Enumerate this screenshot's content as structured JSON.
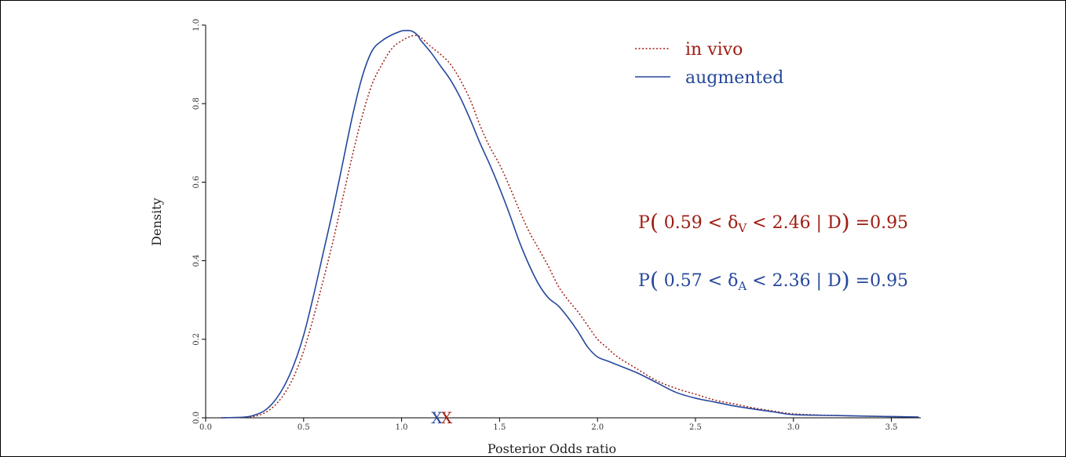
{
  "chart_data": {
    "type": "line",
    "title": "",
    "xlabel": "Posterior Odds ratio",
    "ylabel": "Density",
    "xlim": [
      0.0,
      3.65
    ],
    "ylim": [
      0.0,
      1.0
    ],
    "x_ticks": [
      "0.0",
      "0.5",
      "1.0",
      "1.5",
      "2.0",
      "2.5",
      "3.0",
      "3.5"
    ],
    "y_ticks": [
      "0.0",
      "0.2",
      "0.4",
      "0.6",
      "0.8",
      "1.0"
    ],
    "grid": false,
    "legend_position": "top-right",
    "series": [
      {
        "name": "in vivo",
        "color": "#a01c12",
        "style": "dotted",
        "x": [
          0.08,
          0.2,
          0.25,
          0.3,
          0.35,
          0.4,
          0.45,
          0.5,
          0.55,
          0.6,
          0.65,
          0.7,
          0.75,
          0.8,
          0.85,
          0.9,
          0.95,
          1.0,
          1.05,
          1.08,
          1.1,
          1.15,
          1.2,
          1.25,
          1.3,
          1.35,
          1.4,
          1.45,
          1.5,
          1.55,
          1.6,
          1.65,
          1.7,
          1.75,
          1.8,
          1.85,
          1.9,
          1.95,
          2.0,
          2.05,
          2.1,
          2.2,
          2.3,
          2.4,
          2.5,
          2.6,
          2.7,
          2.8,
          2.9,
          3.0,
          3.2,
          3.4,
          3.64
        ],
        "y": [
          0.0,
          0.001,
          0.004,
          0.012,
          0.03,
          0.06,
          0.105,
          0.17,
          0.255,
          0.35,
          0.45,
          0.56,
          0.67,
          0.77,
          0.85,
          0.9,
          0.94,
          0.96,
          0.972,
          0.973,
          0.968,
          0.945,
          0.925,
          0.9,
          0.86,
          0.81,
          0.745,
          0.69,
          0.645,
          0.59,
          0.53,
          0.475,
          0.43,
          0.385,
          0.335,
          0.3,
          0.27,
          0.235,
          0.2,
          0.178,
          0.156,
          0.125,
          0.095,
          0.075,
          0.06,
          0.045,
          0.035,
          0.025,
          0.017,
          0.01,
          0.006,
          0.004,
          0.002
        ]
      },
      {
        "name": "augmented",
        "color": "#25479c",
        "style": "solid",
        "x": [
          0.08,
          0.2,
          0.25,
          0.3,
          0.35,
          0.4,
          0.45,
          0.5,
          0.55,
          0.6,
          0.65,
          0.7,
          0.75,
          0.8,
          0.85,
          0.9,
          0.95,
          1.0,
          1.02,
          1.05,
          1.08,
          1.1,
          1.15,
          1.2,
          1.25,
          1.3,
          1.35,
          1.4,
          1.45,
          1.5,
          1.55,
          1.6,
          1.65,
          1.7,
          1.75,
          1.8,
          1.85,
          1.9,
          1.95,
          2.0,
          2.05,
          2.1,
          2.2,
          2.3,
          2.4,
          2.5,
          2.6,
          2.7,
          2.8,
          2.9,
          3.0,
          3.2,
          3.4,
          3.64
        ],
        "y": [
          0.0,
          0.002,
          0.007,
          0.018,
          0.042,
          0.08,
          0.135,
          0.21,
          0.31,
          0.42,
          0.53,
          0.65,
          0.77,
          0.87,
          0.935,
          0.96,
          0.975,
          0.985,
          0.986,
          0.985,
          0.975,
          0.96,
          0.93,
          0.895,
          0.86,
          0.815,
          0.76,
          0.7,
          0.645,
          0.585,
          0.52,
          0.45,
          0.39,
          0.34,
          0.305,
          0.285,
          0.255,
          0.22,
          0.18,
          0.155,
          0.145,
          0.135,
          0.115,
          0.09,
          0.065,
          0.05,
          0.04,
          0.03,
          0.022,
          0.015,
          0.008,
          0.006,
          0.004,
          0.002
        ]
      }
    ],
    "markers": [
      {
        "label": "X",
        "x": 1.18,
        "color": "#25479c"
      },
      {
        "label": "X",
        "x": 1.23,
        "color": "#a01c12"
      }
    ],
    "annotations": [
      {
        "prefix": "P",
        "lower": "0.59",
        "symbol": "δ",
        "sub": "V",
        "upper": "2.46",
        "given": "D",
        "prob": "=0.95",
        "color": "#a01c12"
      },
      {
        "prefix": "P",
        "lower": "0.57",
        "symbol": "δ",
        "sub": "A",
        "upper": "2.36",
        "given": "D",
        "prob": "=0.95",
        "color": "#25479c"
      }
    ]
  }
}
